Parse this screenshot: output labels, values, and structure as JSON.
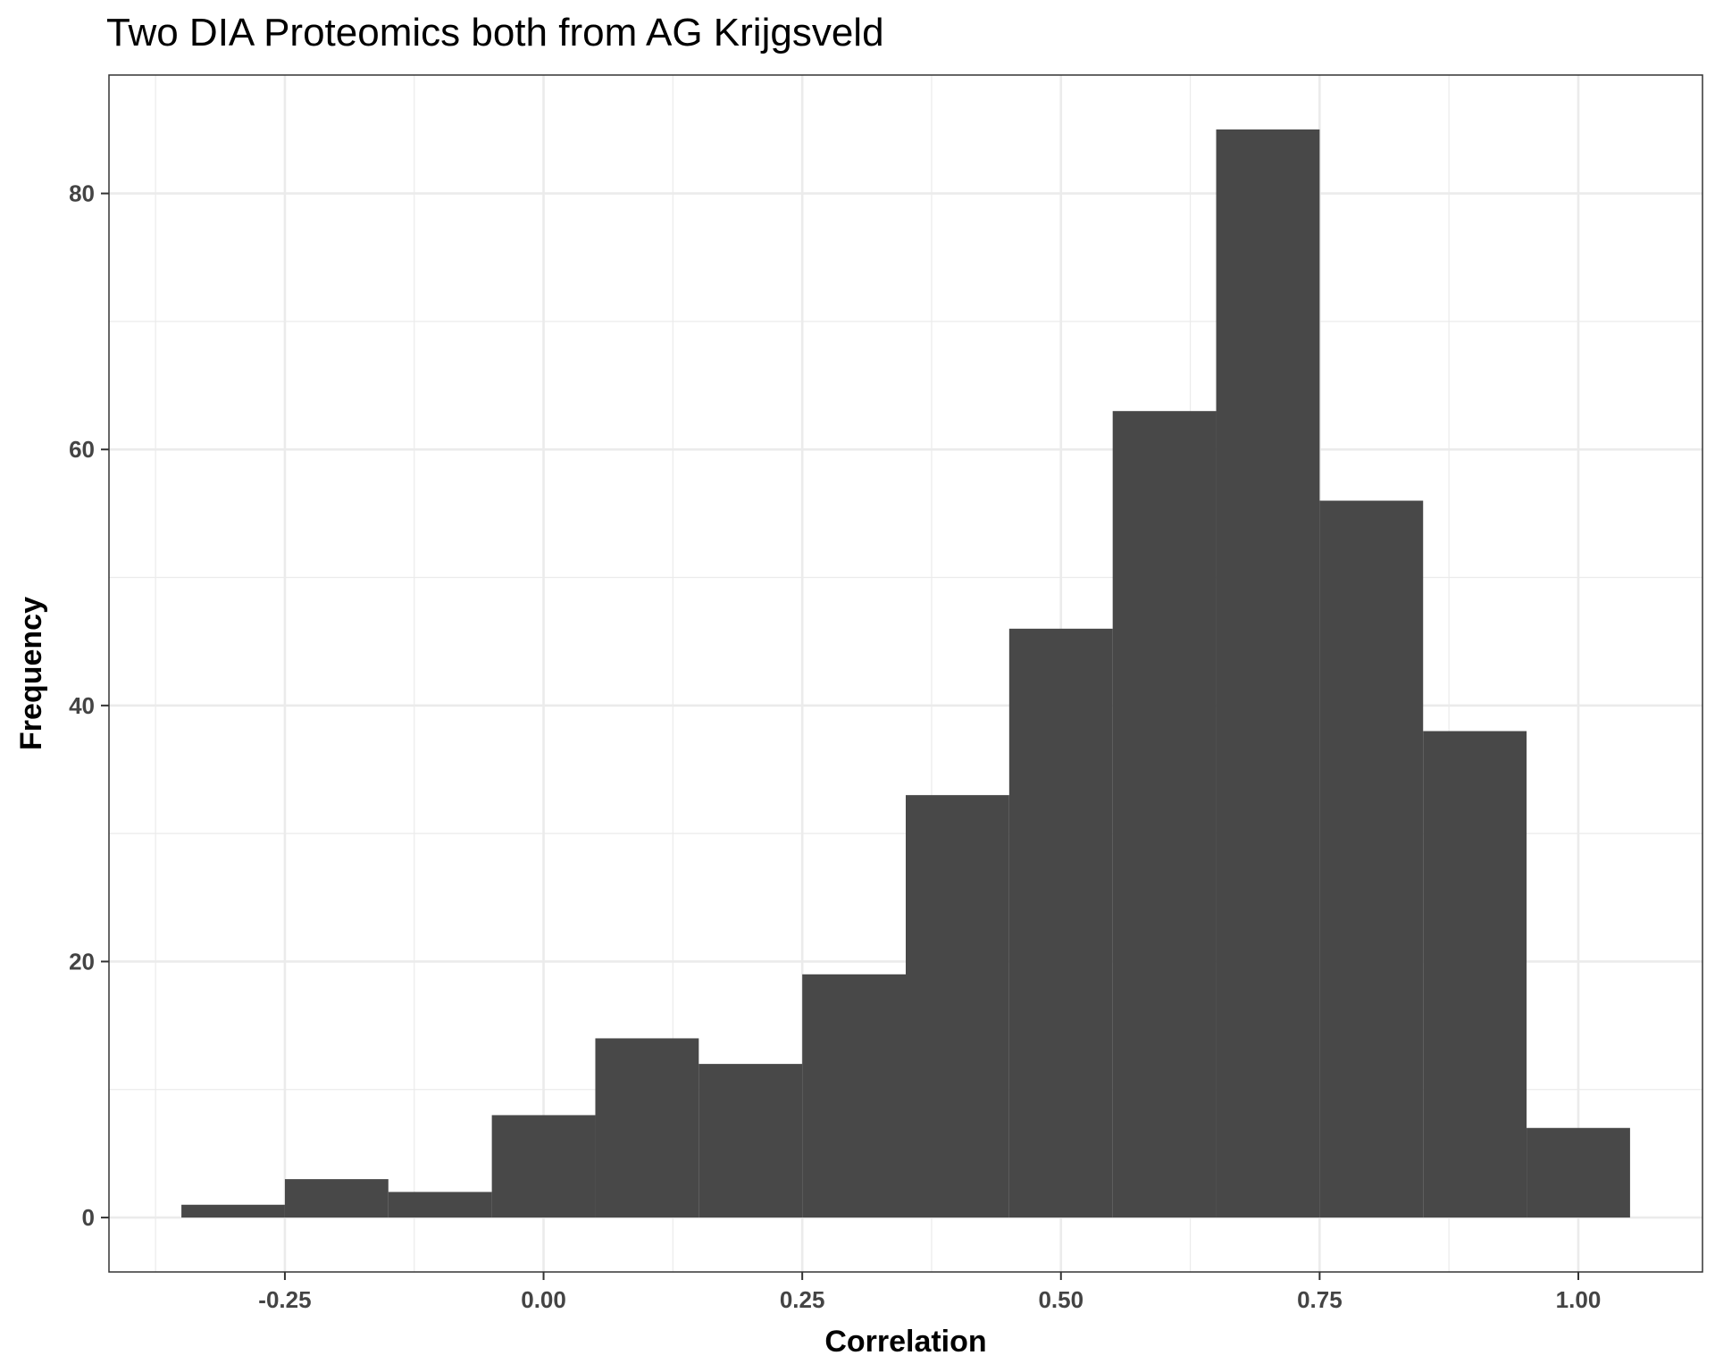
{
  "chart_data": {
    "type": "bar",
    "title": "Two DIA Proteomics both from AG Krijgsveld",
    "xlabel": "Correlation",
    "ylabel": "Frequency",
    "bin_width": 0.1,
    "bins": [
      {
        "x0": -0.35,
        "x1": -0.25,
        "count": 1
      },
      {
        "x0": -0.25,
        "x1": -0.15,
        "count": 3
      },
      {
        "x0": -0.15,
        "x1": -0.05,
        "count": 2
      },
      {
        "x0": -0.05,
        "x1": 0.05,
        "count": 8
      },
      {
        "x0": 0.05,
        "x1": 0.15,
        "count": 14
      },
      {
        "x0": 0.15,
        "x1": 0.25,
        "count": 12
      },
      {
        "x0": 0.25,
        "x1": 0.35,
        "count": 19
      },
      {
        "x0": 0.35,
        "x1": 0.45,
        "count": 33
      },
      {
        "x0": 0.45,
        "x1": 0.55,
        "count": 46
      },
      {
        "x0": 0.55,
        "x1": 0.65,
        "count": 63
      },
      {
        "x0": 0.65,
        "x1": 0.75,
        "count": 85
      },
      {
        "x0": 0.75,
        "x1": 0.85,
        "count": 56
      },
      {
        "x0": 0.85,
        "x1": 0.95,
        "count": 38
      },
      {
        "x0": 0.95,
        "x1": 1.05,
        "count": 7
      }
    ],
    "xlim": [
      -0.42,
      1.12
    ],
    "ylim": [
      -4.25,
      89.25
    ],
    "x_ticks": [
      -0.25,
      0.0,
      0.25,
      0.5,
      0.75,
      1.0
    ],
    "x_tick_labels": [
      "-0.25",
      "0.00",
      "0.25",
      "0.50",
      "0.75",
      "1.00"
    ],
    "y_ticks": [
      0,
      20,
      40,
      60,
      80
    ],
    "y_tick_labels": [
      "0",
      "20",
      "40",
      "60",
      "80"
    ],
    "grid": true,
    "bar_color": "#484848",
    "grid_color": "#ebebeb",
    "panel_border_color": "#333333"
  }
}
